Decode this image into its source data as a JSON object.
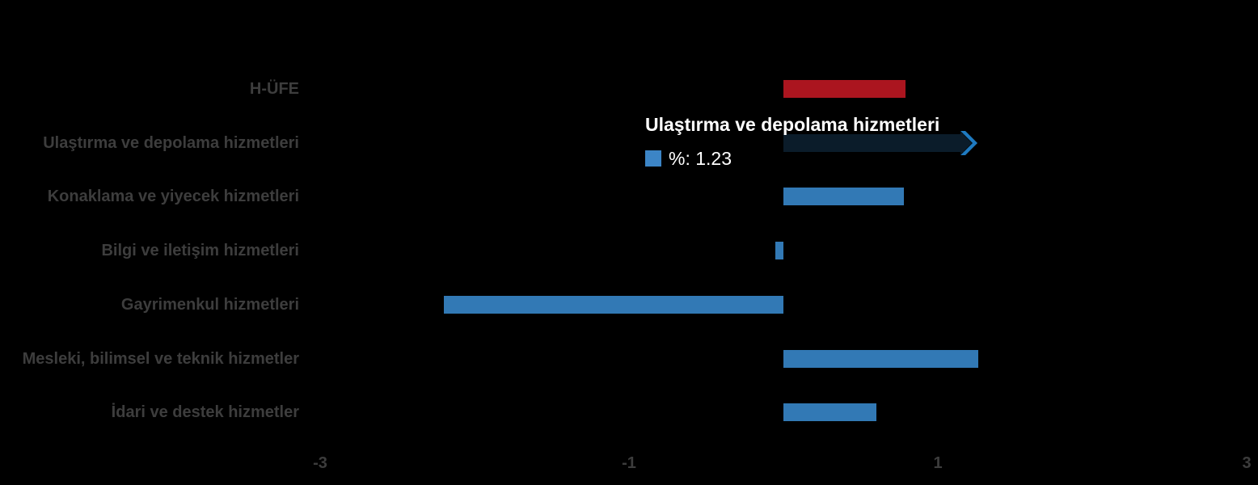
{
  "chart_data": {
    "type": "bar",
    "orientation": "horizontal",
    "title": "",
    "xlabel": "",
    "ylabel": "",
    "xlim": [
      -3,
      3
    ],
    "grid": false,
    "series_name": "%",
    "categories": [
      "H-ÜFE",
      "Ulaştırma ve depolama hizmetleri",
      "Konaklama ve yiyecek hizmetleri",
      "Bilgi ve iletişim hizmetleri",
      "Gayrimenkul hizmetleri",
      "Mesleki, bilimsel ve teknik hizmetler",
      "İdari ve destek hizmetler"
    ],
    "values": [
      0.79,
      1.23,
      0.78,
      -0.05,
      -2.2,
      1.26,
      0.6
    ],
    "bar_colors": [
      "#ab151f",
      "#0b1c2a",
      "#3279b5",
      "#3279b5",
      "#3279b5",
      "#3279b5",
      "#3279b5"
    ],
    "highlighted_index": 1,
    "x_ticks": [
      {
        "value": -3,
        "label": "-3"
      },
      {
        "value": -1,
        "label": "-1"
      },
      {
        "value": 1,
        "label": "1"
      },
      {
        "value": 3,
        "label": "3"
      }
    ]
  },
  "tooltip": {
    "title": "Ulaştırma ve depolama hizmetleri",
    "value_label": "%: 1.23"
  },
  "colors": {
    "background": "#000000",
    "category_label": "#3d3d3d",
    "tick_label": "#3c3c3c",
    "highlight_bar": "#0b1c2a",
    "highlight_arrow": "#1e7ac0",
    "tooltip_text": "#ffffff",
    "tooltip_marker": "#3c85c6"
  }
}
